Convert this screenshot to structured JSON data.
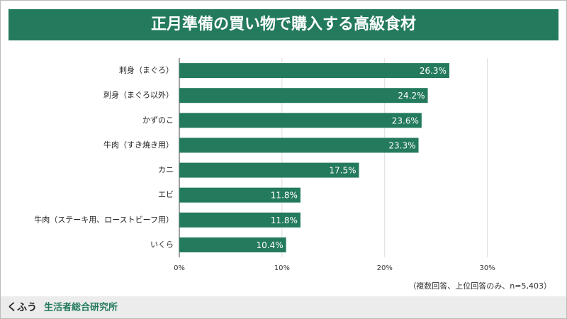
{
  "chart_data": {
    "type": "barh",
    "title": "正月準備の買い物で購入する高級食材",
    "categories": [
      "刺身（まぐろ）",
      "刺身（まぐろ以外）",
      "かずのこ",
      "牛肉（すき焼き用）",
      "カニ",
      "エビ",
      "牛肉（ステーキ用、ローストビーフ用）",
      "いくら"
    ],
    "values": [
      26.3,
      24.2,
      23.6,
      23.3,
      17.5,
      11.8,
      11.8,
      10.4
    ],
    "value_labels": [
      "26.3%",
      "24.2%",
      "23.6%",
      "23.3%",
      "17.5%",
      "11.8%",
      "11.8%",
      "10.4%"
    ],
    "color": "#247a5c",
    "xlim": [
      0,
      35
    ],
    "xticks": [
      {
        "value": 0,
        "label": "0%"
      },
      {
        "value": 10,
        "label": "10%"
      },
      {
        "value": 20,
        "label": "20%"
      },
      {
        "value": 30,
        "label": "30%"
      }
    ],
    "grid": true,
    "note": "（複数回答、上位回答のみ、n=5,403）",
    "brand": "くふう",
    "brand_sub": "生活者総合研究所"
  }
}
